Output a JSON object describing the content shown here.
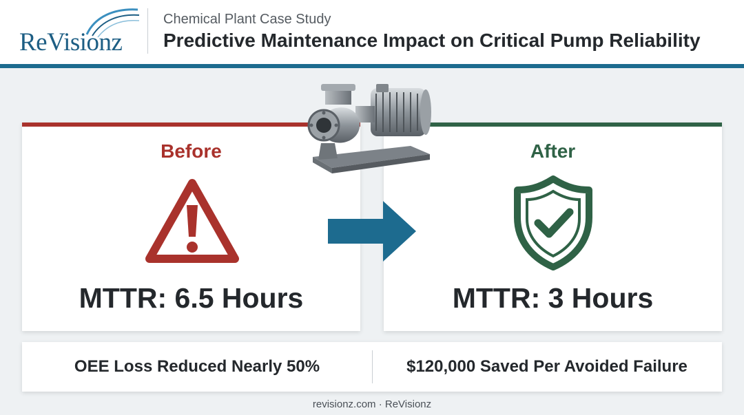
{
  "header": {
    "logo_text": "ReVisionz",
    "subtitle": "Chemical Plant Case Study",
    "title": "Predictive Maintenance Impact on Critical Pump Reliability"
  },
  "before": {
    "label": "Before",
    "icon": "warning-triangle-icon",
    "metric": "MTTR: 6.5 Hours",
    "color": "#a9322c"
  },
  "after": {
    "label": "After",
    "icon": "shield-check-icon",
    "metric": "MTTR: 3 Hours",
    "color": "#2f6246"
  },
  "transition_icon": "right-arrow-icon",
  "illustration": "centrifugal-pump-icon",
  "summary": {
    "left": "OEE Loss Reduced Nearly 50%",
    "right": "$120,000 Saved Per Avoided Failure"
  },
  "footer": "revisionz.com · ReVisionz",
  "colors": {
    "accent": "#1d6b8f",
    "logo": "#1d5e84",
    "text": "#24282c"
  }
}
